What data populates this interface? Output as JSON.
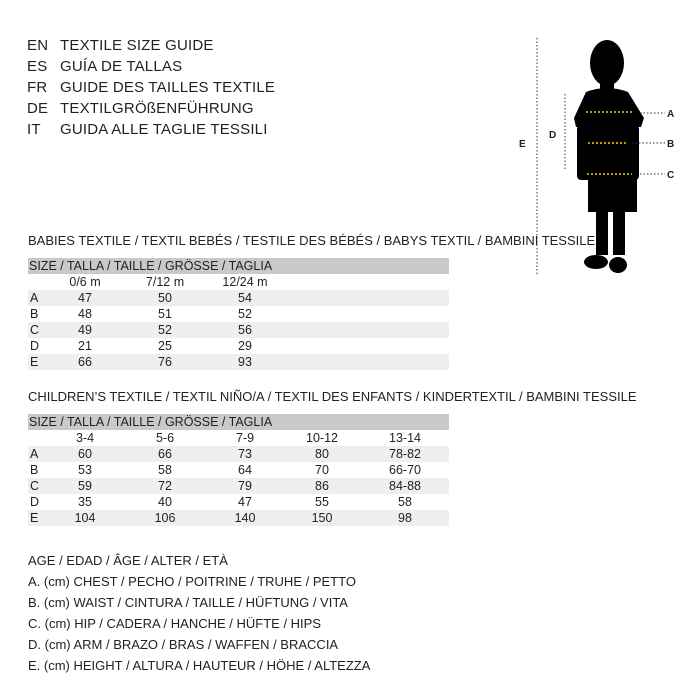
{
  "languages": [
    {
      "code": "EN",
      "title": "TEXTILE SIZE GUIDE"
    },
    {
      "code": "ES",
      "title": "GUÍA DE TALLAS"
    },
    {
      "code": "FR",
      "title": "GUIDE DES TAILLES TEXTILE"
    },
    {
      "code": "DE",
      "title": "TEXTILGRÖßENFÜHRUNG"
    },
    {
      "code": "IT",
      "title": "GUIDA ALLE TAGLIE TESSILI"
    }
  ],
  "babies": {
    "heading": "BABIES TEXTILE / TEXTIL BEBÉS / TESTILE DES BÉBÉS / BABYS TEXTIL / BAMBINI TESSILE",
    "size_header": "SIZE / TALLA / TAILLE / GRÖSSE / TAGLIA",
    "columns": [
      "0/6 m",
      "7/12 m",
      "12/24 m"
    ],
    "rows": [
      {
        "label": "A",
        "values": [
          "47",
          "50",
          "54"
        ]
      },
      {
        "label": "B",
        "values": [
          "48",
          "51",
          "52"
        ]
      },
      {
        "label": "C",
        "values": [
          "49",
          "52",
          "56"
        ]
      },
      {
        "label": "D",
        "values": [
          "21",
          "25",
          "29"
        ]
      },
      {
        "label": "E",
        "values": [
          "66",
          "76",
          "93"
        ]
      }
    ]
  },
  "children": {
    "heading": "CHILDREN’S TEXTILE / TEXTIL NIÑO/A / TEXTIL DES ENFANTS / KINDERTEXTIL / BAMBINI TESSILE",
    "size_header": "SIZE / TALLA / TAILLE / GRÖSSE / TAGLIA",
    "columns": [
      "3-4",
      "5-6",
      "7-9",
      "10-12",
      "13-14"
    ],
    "rows": [
      {
        "label": "A",
        "values": [
          "60",
          "66",
          "73",
          "80",
          "78-82"
        ]
      },
      {
        "label": "B",
        "values": [
          "53",
          "58",
          "64",
          "70",
          "66-70"
        ]
      },
      {
        "label": "C",
        "values": [
          "59",
          "72",
          "79",
          "86",
          "84-88"
        ]
      },
      {
        "label": "D",
        "values": [
          "35",
          "40",
          "47",
          "55",
          "58"
        ]
      },
      {
        "label": "E",
        "values": [
          "104",
          "106",
          "140",
          "150",
          "98"
        ]
      }
    ]
  },
  "legend": [
    "AGE / EDAD / ÂGE / ALTER / ETÀ",
    "A. (cm) CHEST / PECHO / POITRINE / TRUHE / PETTO",
    "B. (cm) WAIST / CINTURA / TAILLE / HÜFTUNG / VITA",
    "C. (cm) HIP / CADERA / HANCHE / HÜFTE / HIPS",
    "D. (cm) ARM / BRAZO / BRAS / WAFFEN / BRACCIA",
    "E. (cm) HEIGHT / ALTURA / HAUTEUR / HÖHE / ALTEZZA"
  ],
  "figure": {
    "labels": {
      "A": "A",
      "B": "B",
      "C": "C",
      "D": "D",
      "E": "E"
    },
    "measure_color": "#f2d400"
  }
}
